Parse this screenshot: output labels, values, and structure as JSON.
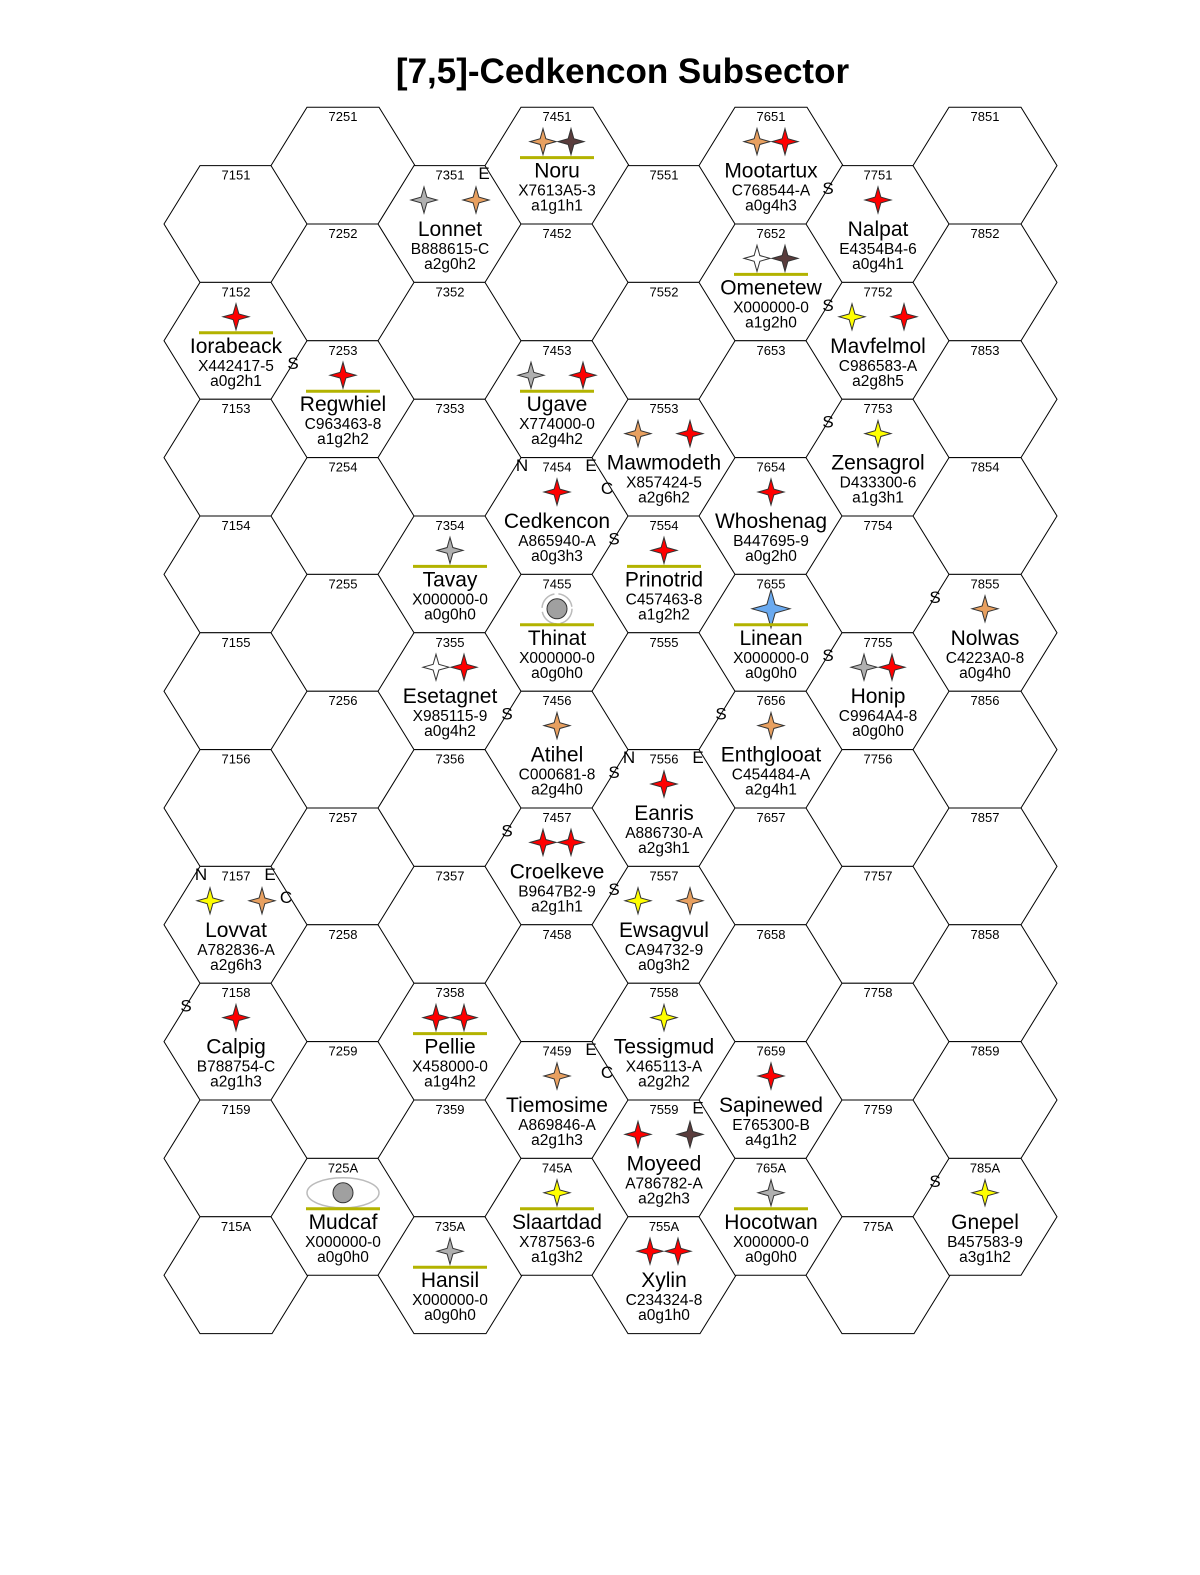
{
  "title": "[7,5]-Cedkencon Subsector",
  "colors": {
    "red": "#ff0000",
    "orange": "#e8a060",
    "gray": "#b0b0b0",
    "white": "#ffffff",
    "brown": "#5a3c3c",
    "yellow": "#ffff00",
    "blue": "#6aaaf0",
    "capital_underline": "#b3b300"
  },
  "hexes": {
    "columns": [
      "71",
      "72",
      "73",
      "74",
      "75",
      "76",
      "77",
      "78"
    ],
    "rows": [
      "51",
      "52",
      "53",
      "54",
      "55",
      "56",
      "57",
      "58",
      "59",
      "5A"
    ]
  },
  "worlds": [
    {
      "hex": "7451",
      "name": "Noru",
      "upp": "X7613A5-3",
      "code": "a1g1h1",
      "stars": [
        "orange",
        "brown"
      ],
      "capital": true
    },
    {
      "hex": "7651",
      "name": "Mootartux",
      "upp": "C768544-A",
      "code": "a0g4h3",
      "stars": [
        "orange",
        "red"
      ]
    },
    {
      "hex": "7351",
      "name": "Lonnet",
      "upp": "B888615-C",
      "code": "a2g0h2",
      "stars": [
        "gray",
        "orange"
      ],
      "star_spread": true,
      "labels": {
        "E": "E"
      }
    },
    {
      "hex": "7751",
      "name": "Nalpat",
      "upp": "E4354B4-6",
      "code": "a0g4h1",
      "stars": [
        "red"
      ],
      "labels": {
        "S": "S"
      }
    },
    {
      "hex": "7652",
      "name": "Omenetew",
      "upp": "X000000-0",
      "code": "a1g2h0",
      "stars": [
        "white",
        "brown"
      ],
      "capital": true
    },
    {
      "hex": "7152",
      "name": "Iorabeack",
      "upp": "X442417-5",
      "code": "a0g2h1",
      "stars": [
        "red"
      ],
      "capital": true
    },
    {
      "hex": "7752",
      "name": "Mavfelmol",
      "upp": "C986583-A",
      "code": "a2g8h5",
      "stars": [
        "yellow",
        "red"
      ],
      "star_spread": true,
      "labels": {
        "S": "S"
      }
    },
    {
      "hex": "7253",
      "name": "Regwhiel",
      "upp": "C963463-8",
      "code": "a1g2h2",
      "stars": [
        "red"
      ],
      "capital": true,
      "labels": {
        "S": "S"
      }
    },
    {
      "hex": "7453",
      "name": "Ugave",
      "upp": "X774000-0",
      "code": "a2g4h2",
      "stars": [
        "gray",
        "red"
      ],
      "star_spread": true,
      "capital": true
    },
    {
      "hex": "7553",
      "name": "Mawmodeth",
      "upp": "X857424-5",
      "code": "a2g6h2",
      "stars": [
        "orange",
        "red"
      ],
      "star_spread": true
    },
    {
      "hex": "7753",
      "name": "Zensagrol",
      "upp": "D433300-6",
      "code": "a1g3h1",
      "stars": [
        "yellow"
      ],
      "labels": {
        "S": "S"
      }
    },
    {
      "hex": "7454",
      "name": "Cedkencon",
      "upp": "A865940-A",
      "code": "a0g3h3",
      "stars": [
        "red"
      ],
      "labels": {
        "N": "N",
        "E": "E",
        "C": "C"
      }
    },
    {
      "hex": "7654",
      "name": "Whoshenag",
      "upp": "B447695-9",
      "code": "a0g2h0",
      "stars": [
        "red"
      ]
    },
    {
      "hex": "7354",
      "name": "Tavay",
      "upp": "X000000-0",
      "code": "a0g0h0",
      "stars": [
        "gray"
      ],
      "capital": true
    },
    {
      "hex": "7554",
      "name": "Prinotrid",
      "upp": "C457463-8",
      "code": "a1g2h2",
      "stars": [
        "red"
      ],
      "capital": true,
      "labels": {
        "S": "S"
      }
    },
    {
      "hex": "7455",
      "name": "Thinat",
      "upp": "X000000-0",
      "code": "a0g0h0",
      "stars": [],
      "planet": "small",
      "capital": true
    },
    {
      "hex": "7655",
      "name": "Linean",
      "upp": "X000000-0",
      "code": "a0g0h0",
      "stars": [
        "blue"
      ],
      "big_star": true,
      "capital": true
    },
    {
      "hex": "7855",
      "name": "Nolwas",
      "upp": "C4223A0-8",
      "code": "a0g4h0",
      "stars": [
        "orange"
      ],
      "labels": {
        "S": "S"
      }
    },
    {
      "hex": "7355",
      "name": "Esetagnet",
      "upp": "X985115-9",
      "code": "a0g4h2",
      "stars": [
        "white",
        "red"
      ]
    },
    {
      "hex": "7755",
      "name": "Honip",
      "upp": "C9964A4-8",
      "code": "a0g0h0",
      "stars": [
        "gray",
        "red"
      ],
      "labels": {
        "S": "S"
      }
    },
    {
      "hex": "7456",
      "name": "Atihel",
      "upp": "C000681-8",
      "code": "a2g4h0",
      "stars": [
        "orange"
      ],
      "labels": {
        "S": "S"
      }
    },
    {
      "hex": "7656",
      "name": "Enthglooat",
      "upp": "C454484-A",
      "code": "a2g4h1",
      "stars": [
        "orange"
      ],
      "labels": {
        "S": "S"
      }
    },
    {
      "hex": "7556",
      "name": "Eanris",
      "upp": "A886730-A",
      "code": "a2g3h1",
      "stars": [
        "red"
      ],
      "labels": {
        "N": "N",
        "E": "E",
        "S": "S"
      }
    },
    {
      "hex": "7457",
      "name": "Croelkeve",
      "upp": "B9647B2-9",
      "code": "a2g1h1",
      "stars": [
        "red",
        "red"
      ],
      "labels": {
        "S": "S"
      }
    },
    {
      "hex": "7157",
      "name": "Lovvat",
      "upp": "A782836-A",
      "code": "a2g6h3",
      "stars": [
        "yellow",
        "orange"
      ],
      "star_spread": true,
      "labels": {
        "N": "N",
        "E": "E",
        "C": "C"
      }
    },
    {
      "hex": "7557",
      "name": "Ewsagvul",
      "upp": "CA94732-9",
      "code": "a0g3h2",
      "stars": [
        "yellow",
        "orange"
      ],
      "star_spread": true,
      "labels": {
        "S": "S"
      }
    },
    {
      "hex": "7158",
      "name": "Calpig",
      "upp": "B788754-C",
      "code": "a2g1h3",
      "stars": [
        "red"
      ],
      "labels": {
        "S": "S"
      }
    },
    {
      "hex": "7358",
      "name": "Pellie",
      "upp": "X458000-0",
      "code": "a1g4h2",
      "stars": [
        "red",
        "red"
      ],
      "capital": true
    },
    {
      "hex": "7558",
      "name": "Tessigmud",
      "upp": "X465113-A",
      "code": "a2g2h2",
      "stars": [
        "yellow"
      ]
    },
    {
      "hex": "7459",
      "name": "Tiemosime",
      "upp": "A869846-A",
      "code": "a2g1h3",
      "stars": [
        "orange"
      ],
      "labels": {
        "E": "E",
        "C": "C"
      }
    },
    {
      "hex": "7659",
      "name": "Sapinewed",
      "upp": "E765300-B",
      "code": "a4g1h2",
      "stars": [
        "red"
      ]
    },
    {
      "hex": "7559",
      "name": "Moyeed",
      "upp": "A786782-A",
      "code": "a2g2h3",
      "stars": [
        "red",
        "brown"
      ],
      "star_spread": true,
      "labels": {
        "E": "E"
      }
    },
    {
      "hex": "725A",
      "name": "Mudcaf",
      "upp": "X000000-0",
      "code": "a0g0h0",
      "stars": [],
      "planet": "big",
      "capital": true
    },
    {
      "hex": "745A",
      "name": "Slaartdad",
      "upp": "X787563-6",
      "code": "a1g3h2",
      "stars": [
        "yellow"
      ],
      "capital": true
    },
    {
      "hex": "765A",
      "name": "Hocotwan",
      "upp": "X000000-0",
      "code": "a0g0h0",
      "stars": [
        "gray"
      ],
      "capital": true
    },
    {
      "hex": "785A",
      "name": "Gnepel",
      "upp": "B457583-9",
      "code": "a3g1h2",
      "stars": [
        "yellow"
      ],
      "labels": {
        "S": "S"
      }
    },
    {
      "hex": "735A",
      "name": "Hansil",
      "upp": "X000000-0",
      "code": "a0g0h0",
      "stars": [
        "gray"
      ],
      "capital": true
    },
    {
      "hex": "755A",
      "name": "Xylin",
      "upp": "C234324-8",
      "code": "a0g1h0",
      "stars": [
        "red",
        "red"
      ]
    }
  ]
}
